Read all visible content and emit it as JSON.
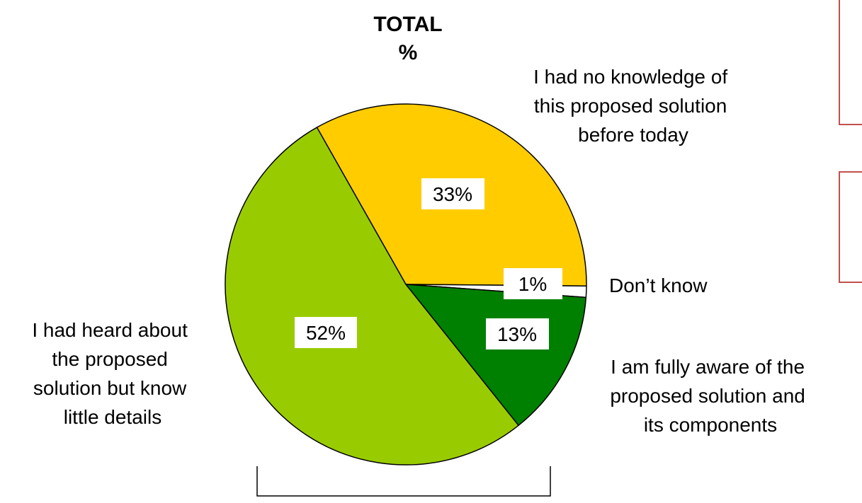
{
  "chart_data": {
    "type": "pie",
    "title": "TOTAL",
    "subtitle": "%",
    "slices": [
      {
        "label": "I had no knowledge of this proposed solution before today",
        "value": 33,
        "value_label": "33%",
        "color": "#FFCC00"
      },
      {
        "label": "Don’t know",
        "value": 1,
        "value_label": "1%",
        "color": "#FFFFFF"
      },
      {
        "label": "I am fully aware of the proposed solution and its components",
        "value": 13,
        "value_label": "13%",
        "color": "#008000"
      },
      {
        "label": "I had heard about the proposed solution but know little details",
        "value": 52,
        "value_label": "52%",
        "color": "#99CC00"
      }
    ],
    "legend": "none"
  },
  "labels": {
    "no_knowledge": [
      "I had no knowledge of",
      "this proposed solution",
      "before today"
    ],
    "dont_know": [
      "Don’t know"
    ],
    "fully_aware": [
      "I am fully aware of the",
      "proposed solution and",
      "its components"
    ],
    "heard_about": [
      "I had heard about",
      "the proposed",
      "solution but know",
      "little details"
    ]
  },
  "colors": {
    "outline": "#000000",
    "accent_box": "#C0504D"
  }
}
